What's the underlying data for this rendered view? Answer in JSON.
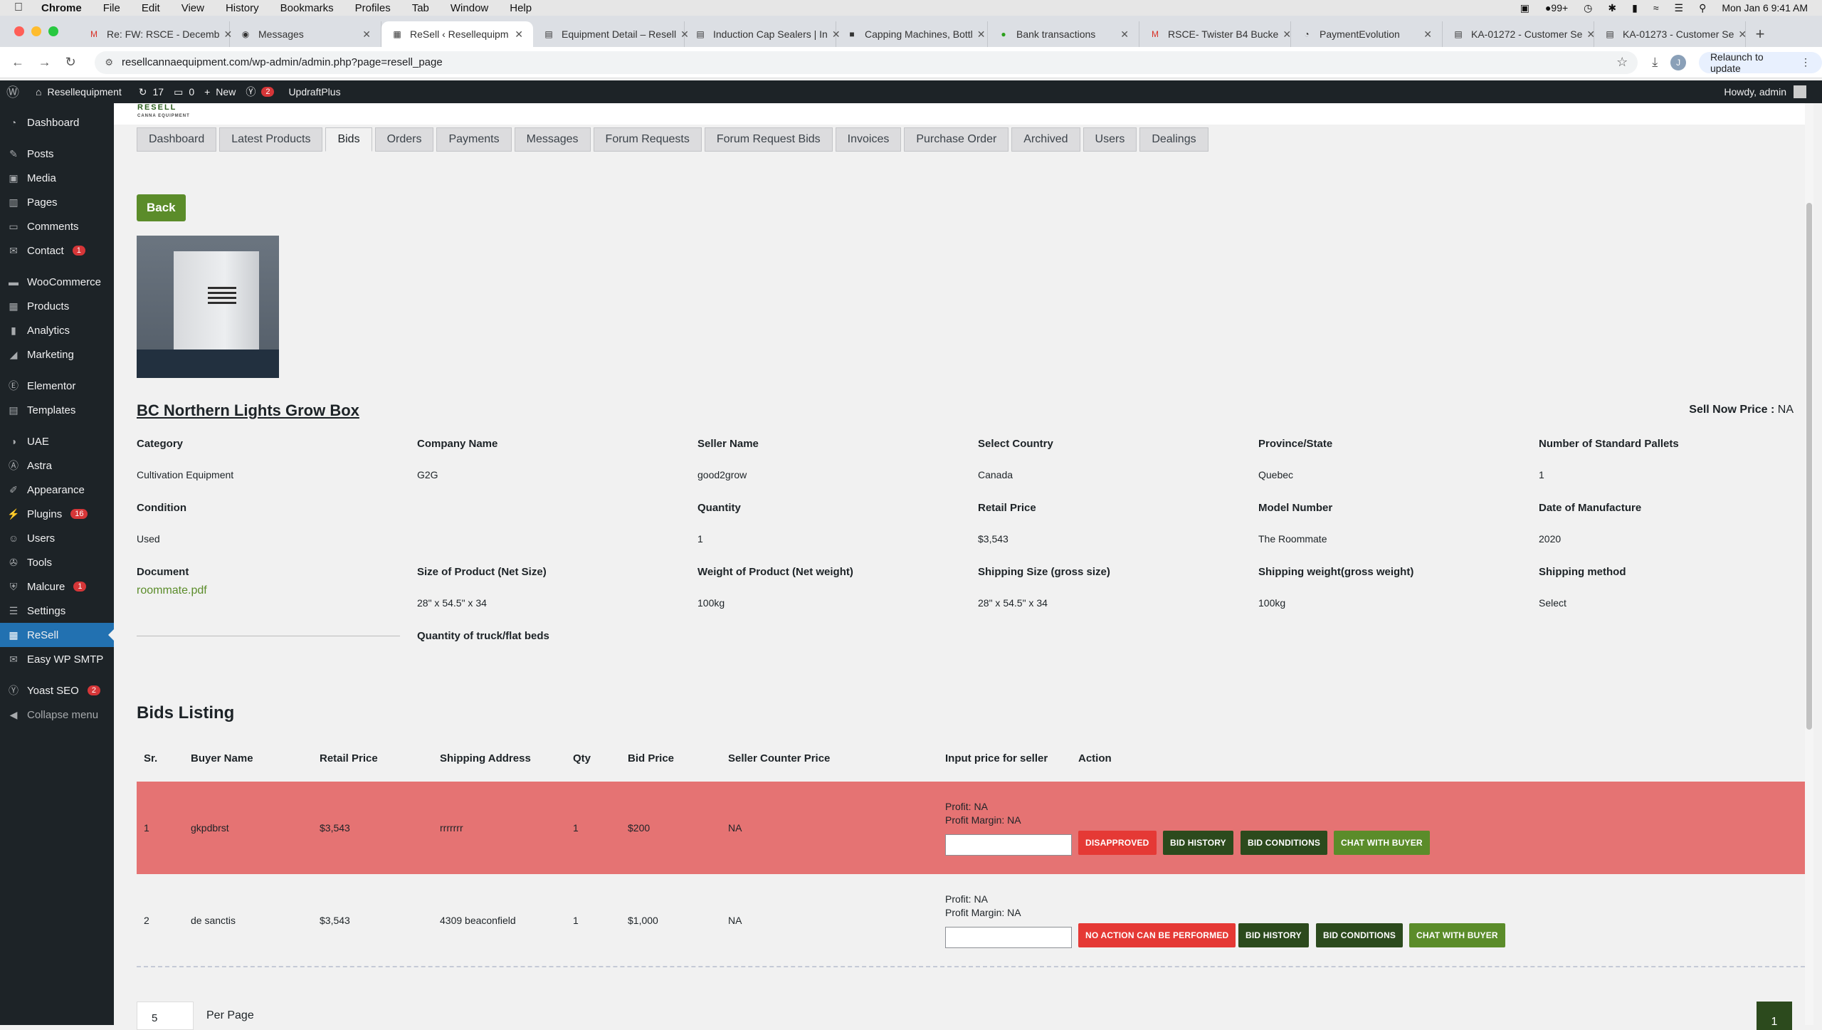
{
  "mac_menu": {
    "app": "Chrome",
    "items": [
      "File",
      "Edit",
      "View",
      "History",
      "Bookmarks",
      "Profiles",
      "Tab",
      "Window",
      "Help"
    ],
    "status_badge": "99+",
    "datetime": "Mon Jan 6  9:41 AM"
  },
  "browser": {
    "tabs": [
      {
        "title": "Re: FW: RSCE - Decemb",
        "icon": "gmail-icon",
        "active": false
      },
      {
        "title": "Messages",
        "icon": "messages-icon",
        "active": false
      },
      {
        "title": "ReSell ‹ Resellequipm",
        "icon": "resell-icon",
        "active": true
      },
      {
        "title": "Equipment Detail – Resell",
        "icon": "page-icon",
        "active": false
      },
      {
        "title": "Induction Cap Sealers | In",
        "icon": "page-icon",
        "active": false
      },
      {
        "title": "Capping Machines, Bottl",
        "icon": "page-icon",
        "active": false
      },
      {
        "title": "Bank transactions",
        "icon": "quickbooks-icon",
        "active": false
      },
      {
        "title": "RSCE- Twister B4 Bucke",
        "icon": "gmail-icon",
        "active": false
      },
      {
        "title": "PaymentEvolution",
        "icon": "page-icon",
        "active": false
      },
      {
        "title": "KA-01272 - Customer Se",
        "icon": "page-icon",
        "active": false
      },
      {
        "title": "KA-01273 - Customer Se",
        "icon": "page-icon",
        "active": false
      }
    ],
    "url": "resellcannaequipment.com/wp-admin/admin.php?page=resell_page",
    "profile_initial": "J",
    "relaunch_label": "Relaunch to update"
  },
  "wp_admin_bar": {
    "site_name": "Resellequipment",
    "updates_count": "17",
    "comments_count": "0",
    "new_label": "New",
    "yoast_count": "2",
    "updraft_label": "UpdraftPlus",
    "howdy": "Howdy, admin"
  },
  "sidebar": {
    "items": [
      {
        "label": "Dashboard",
        "icon": "dashboard-icon",
        "badge": ""
      },
      {
        "label": "Posts",
        "icon": "pin-icon",
        "badge": ""
      },
      {
        "label": "Media",
        "icon": "media-icon",
        "badge": ""
      },
      {
        "label": "Pages",
        "icon": "pages-icon",
        "badge": ""
      },
      {
        "label": "Comments",
        "icon": "comment-icon",
        "badge": ""
      },
      {
        "label": "Contact",
        "icon": "mail-icon",
        "badge": "1"
      },
      {
        "label": "WooCommerce",
        "icon": "woo-icon",
        "badge": ""
      },
      {
        "label": "Products",
        "icon": "box-icon",
        "badge": ""
      },
      {
        "label": "Analytics",
        "icon": "chart-icon",
        "badge": ""
      },
      {
        "label": "Marketing",
        "icon": "megaphone-icon",
        "badge": ""
      },
      {
        "label": "Elementor",
        "icon": "elementor-icon",
        "badge": ""
      },
      {
        "label": "Templates",
        "icon": "folder-icon",
        "badge": ""
      },
      {
        "label": "UAE",
        "icon": "uae-icon",
        "badge": ""
      },
      {
        "label": "Astra",
        "icon": "astra-icon",
        "badge": ""
      },
      {
        "label": "Appearance",
        "icon": "brush-icon",
        "badge": ""
      },
      {
        "label": "Plugins",
        "icon": "plug-icon",
        "badge": "16"
      },
      {
        "label": "Users",
        "icon": "user-icon",
        "badge": ""
      },
      {
        "label": "Tools",
        "icon": "wrench-icon",
        "badge": ""
      },
      {
        "label": "Malcure",
        "icon": "shield-icon",
        "badge": "1"
      },
      {
        "label": "Settings",
        "icon": "settings-icon",
        "badge": ""
      },
      {
        "label": "ReSell",
        "icon": "resell-icon",
        "badge": ""
      },
      {
        "label": "Easy WP SMTP",
        "icon": "smtp-icon",
        "badge": ""
      },
      {
        "label": "Yoast SEO",
        "icon": "yoast-icon",
        "badge": "2"
      },
      {
        "label": "Collapse menu",
        "icon": "collapse-icon",
        "badge": ""
      }
    ]
  },
  "brand": {
    "logo_text": "RESELL",
    "logo_sub": "CANNA EQUIPMENT"
  },
  "nav_tabs": [
    "Dashboard",
    "Latest Products",
    "Bids",
    "Orders",
    "Payments",
    "Messages",
    "Forum Requests",
    "Forum Request Bids",
    "Invoices",
    "Purchase Order",
    "Archived",
    "Users",
    "Dealings"
  ],
  "back_label": "Back",
  "product": {
    "title": "BC Northern Lights Grow Box",
    "sell_now_label": "Sell Now Price :",
    "sell_now_value": "NA",
    "rows": [
      [
        {
          "k": "Category",
          "v": "Cultivation Equipment"
        },
        {
          "k": "Company Name",
          "v": "G2G"
        },
        {
          "k": "Seller Name",
          "v": "good2grow"
        },
        {
          "k": "Select Country",
          "v": "Canada"
        },
        {
          "k": "Province/State",
          "v": "Quebec"
        },
        {
          "k": "Number of Standard Pallets",
          "v": "1"
        }
      ],
      [
        {
          "k": "Condition",
          "v": "Used"
        },
        {
          "k": "",
          "v": ""
        },
        {
          "k": "Quantity",
          "v": "1"
        },
        {
          "k": "Retail Price",
          "v": "$3,543"
        },
        {
          "k": "Model Number",
          "v": "The Roommate"
        },
        {
          "k": "Date of Manufacture",
          "v": "2020"
        }
      ],
      [
        {
          "k": "Document",
          "v": "roommate.pdf"
        },
        {
          "k": "Size of Product (Net Size)",
          "v": "28\" x 54.5\" x 34"
        },
        {
          "k": "Weight of Product (Net weight)",
          "v": "100kg"
        },
        {
          "k": "Shipping Size (gross size)",
          "v": "28\" x 54.5\" x 34"
        },
        {
          "k": "Shipping weight(gross weight)",
          "v": "100kg"
        },
        {
          "k": "Shipping method",
          "v": "Select"
        }
      ]
    ],
    "extra_label": "Quantity of truck/flat beds"
  },
  "bids": {
    "title": "Bids Listing",
    "headers": [
      "Sr.",
      "Buyer Name",
      "Retail Price",
      "Shipping Address",
      "Qty",
      "Bid Price",
      "Seller Counter Price",
      "Input price for seller",
      "Action"
    ],
    "rows": [
      {
        "sr": "1",
        "buyer": "gkpdbrst",
        "retail": "$3,543",
        "address": "rrrrrrr",
        "qty": "1",
        "bid": "$200",
        "counter": "NA",
        "profit": "Profit: NA",
        "margin": "Profit Margin: NA",
        "status_label": "DISAPPROVED",
        "history_label": "BID HISTORY",
        "conditions_label": "BID CONDITIONS",
        "chat_label": "CHAT WITH BUYER",
        "highlight": "#e57373"
      },
      {
        "sr": "2",
        "buyer": "de sanctis",
        "retail": "$3,543",
        "address": "4309 beaconfield",
        "qty": "1",
        "bid": "$1,000",
        "counter": "NA",
        "profit": "Profit: NA",
        "margin": "Profit Margin: NA",
        "status_label": "NO ACTION CAN BE PERFORMED",
        "history_label": "BID HISTORY",
        "conditions_label": "BID CONDITIONS",
        "chat_label": "CHAT WITH BUYER",
        "highlight": ""
      }
    ]
  },
  "pagination": {
    "per_page_value": "5",
    "per_page_label": "Per Page",
    "current_page": "1"
  },
  "colors": {
    "accent_green": "#5b8c2a",
    "dark_green": "#2c4a1d",
    "wp_dark": "#1d2327",
    "wp_blue": "#2271b1",
    "danger": "#e53935"
  }
}
